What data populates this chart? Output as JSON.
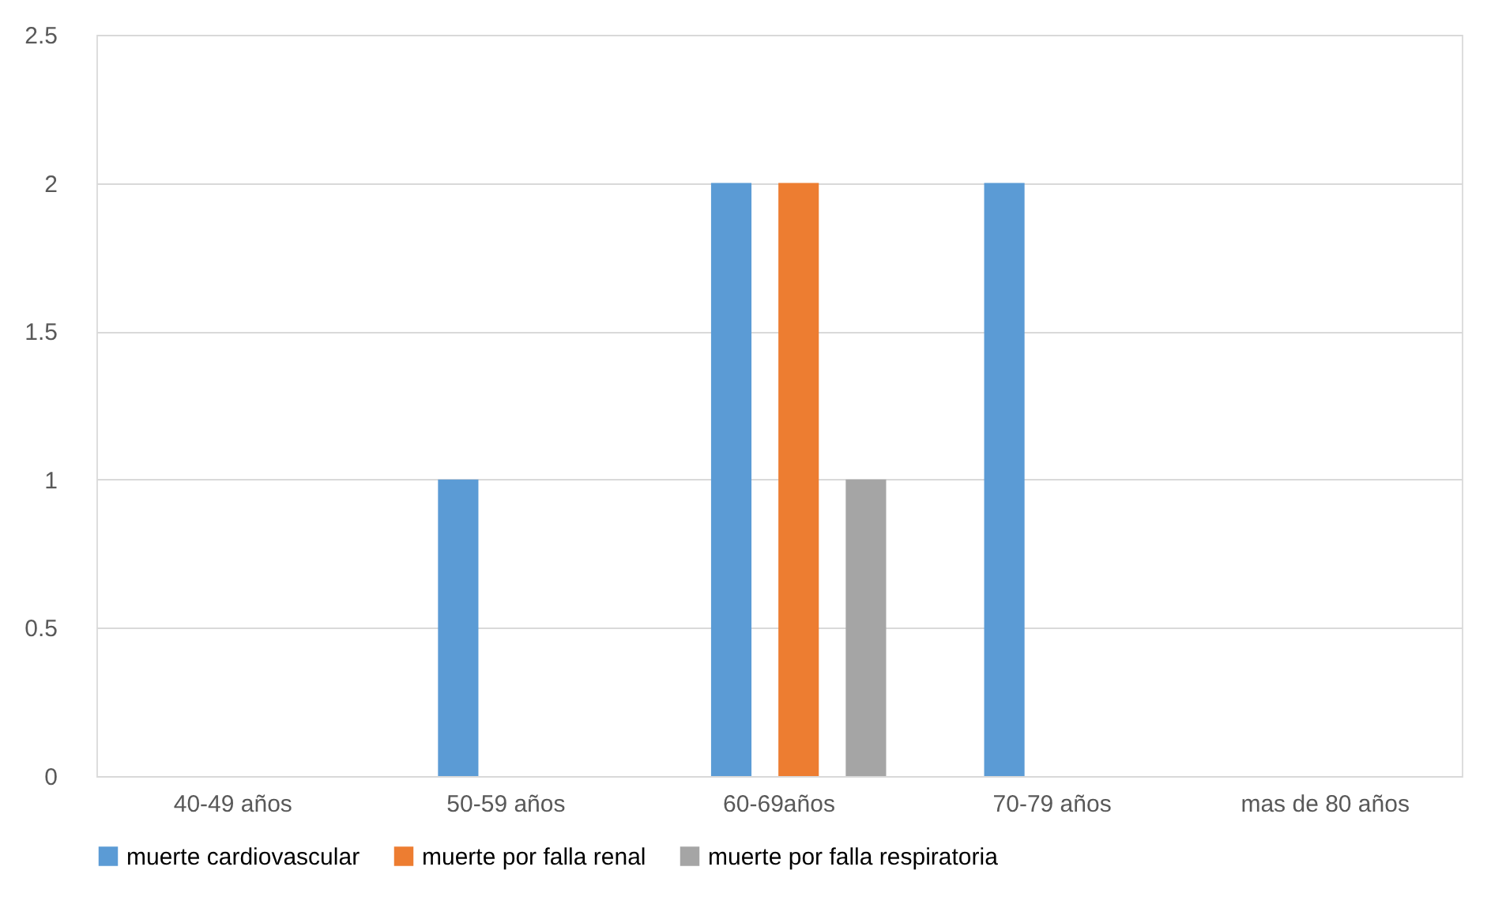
{
  "chart_data": {
    "type": "bar",
    "categories": [
      "40-49 años",
      "50-59 años",
      "60-69años",
      "70-79 años",
      "mas de 80 años"
    ],
    "series": [
      {
        "name": "muerte cardiovascular",
        "color": "#5b9bd5",
        "values": [
          0,
          1,
          2,
          2,
          0
        ]
      },
      {
        "name": "muerte por falla renal",
        "color": "#ed7d31",
        "values": [
          0,
          0,
          2,
          0,
          0
        ]
      },
      {
        "name": "muerte por falla respiratoria",
        "color": "#a5a5a5",
        "values": [
          0,
          0,
          1,
          0,
          0
        ]
      }
    ],
    "ylim": [
      0,
      2.5
    ],
    "yticks": [
      0,
      0.5,
      1,
      1.5,
      2,
      2.5
    ],
    "grid": "y",
    "legend": "bottom"
  }
}
